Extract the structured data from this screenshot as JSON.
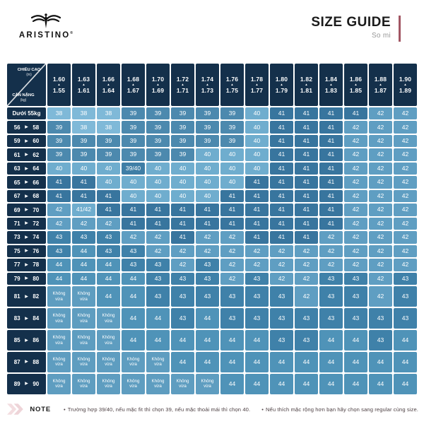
{
  "brand": {
    "name": "ARISTINO",
    "registered_mark": "®"
  },
  "title_block": {
    "title": "SIZE GUIDE",
    "subtitle": "So mi",
    "accent_color": "#a25663"
  },
  "chart_data": {
    "type": "table",
    "title": "SIZE GUIDE",
    "subtitle": "So mi",
    "corner": {
      "top_label": "CHIỀU CAO",
      "top_unit": "(m)",
      "bottom_label": "CÂN NẶNG",
      "bottom_unit": "(kg)"
    },
    "column_arrow": "▲",
    "row_arrow": "▶",
    "no_fit_text": "Không vừa",
    "height_columns": [
      {
        "upper": "1.60",
        "lower": "1.55"
      },
      {
        "upper": "1.63",
        "lower": "1.61"
      },
      {
        "upper": "1.66",
        "lower": "1.64"
      },
      {
        "upper": "1.68",
        "lower": "1.67"
      },
      {
        "upper": "1.70",
        "lower": "1.69"
      },
      {
        "upper": "1.72",
        "lower": "1.71"
      },
      {
        "upper": "1.74",
        "lower": "1.73"
      },
      {
        "upper": "1.76",
        "lower": "1.75"
      },
      {
        "upper": "1.78",
        "lower": "1.77"
      },
      {
        "upper": "1.80",
        "lower": "1.79"
      },
      {
        "upper": "1.82",
        "lower": "1.81"
      },
      {
        "upper": "1.84",
        "lower": "1.83"
      },
      {
        "upper": "1.86",
        "lower": "1.85"
      },
      {
        "upper": "1.88",
        "lower": "1.87"
      },
      {
        "upper": "1.90",
        "lower": "1.89"
      }
    ],
    "rows": [
      {
        "label": "Dưới 55kg",
        "sizes": [
          "38",
          "38",
          "38",
          "39",
          "39",
          "39",
          "39",
          "39",
          "40",
          "41",
          "41",
          "41",
          "41",
          "42",
          "42"
        ]
      },
      {
        "from": "56",
        "to": "58",
        "sizes": [
          "39",
          "38",
          "38",
          "39",
          "39",
          "39",
          "39",
          "39",
          "40",
          "41",
          "41",
          "41",
          "42",
          "42",
          "42"
        ]
      },
      {
        "from": "59",
        "to": "60",
        "sizes": [
          "39",
          "39",
          "39",
          "39",
          "39",
          "39",
          "39",
          "39",
          "40",
          "41",
          "41",
          "41",
          "42",
          "42",
          "42"
        ]
      },
      {
        "from": "61",
        "to": "62",
        "sizes": [
          "39",
          "39",
          "39",
          "39",
          "39",
          "39",
          "40",
          "40",
          "40",
          "41",
          "41",
          "41",
          "42",
          "42",
          "42"
        ]
      },
      {
        "from": "63",
        "to": "64",
        "sizes": [
          "40",
          "40",
          "40",
          "39/40",
          "40",
          "40",
          "40",
          "40",
          "40",
          "41",
          "41",
          "41",
          "42",
          "42",
          "42"
        ]
      },
      {
        "from": "65",
        "to": "66",
        "sizes": [
          "41",
          "41",
          "40",
          "40",
          "40",
          "40",
          "40",
          "40",
          "41",
          "41",
          "41",
          "41",
          "42",
          "42",
          "42"
        ]
      },
      {
        "from": "67",
        "to": "68",
        "sizes": [
          "41",
          "41",
          "41",
          "40",
          "40",
          "40",
          "40",
          "41",
          "41",
          "41",
          "41",
          "41",
          "42",
          "42",
          "42"
        ]
      },
      {
        "from": "69",
        "to": "70",
        "sizes": [
          "42",
          "41/42",
          "41",
          "41",
          "41",
          "41",
          "41",
          "41",
          "41",
          "41",
          "41",
          "41",
          "42",
          "42",
          "42"
        ]
      },
      {
        "from": "71",
        "to": "72",
        "sizes": [
          "42",
          "42",
          "42",
          "41",
          "41",
          "41",
          "41",
          "41",
          "41",
          "41",
          "41",
          "41",
          "42",
          "42",
          "42"
        ]
      },
      {
        "from": "73",
        "to": "74",
        "sizes": [
          "43",
          "43",
          "43",
          "42",
          "42",
          "41",
          "42",
          "42",
          "41",
          "41",
          "41",
          "42",
          "42",
          "42",
          "42"
        ]
      },
      {
        "from": "75",
        "to": "76",
        "sizes": [
          "43",
          "44",
          "43",
          "43",
          "42",
          "42",
          "42",
          "42",
          "42",
          "42",
          "42",
          "42",
          "42",
          "42",
          "42"
        ]
      },
      {
        "from": "77",
        "to": "78",
        "sizes": [
          "44",
          "44",
          "44",
          "43",
          "43",
          "42",
          "43",
          "42",
          "42",
          "42",
          "42",
          "42",
          "42",
          "42",
          "42"
        ]
      },
      {
        "from": "79",
        "to": "80",
        "sizes": [
          "44",
          "44",
          "44",
          "44",
          "43",
          "43",
          "43",
          "42",
          "43",
          "42",
          "42",
          "43",
          "43",
          "42",
          "43"
        ]
      },
      {
        "from": "81",
        "to": "82",
        "sizes": [
          "Không vừa",
          "Không vừa",
          "44",
          "44",
          "43",
          "43",
          "43",
          "43",
          "43",
          "43",
          "42",
          "43",
          "43",
          "42",
          "43"
        ]
      },
      {
        "from": "83",
        "to": "84",
        "sizes": [
          "Không vừa",
          "Không vừa",
          "Không vừa",
          "44",
          "44",
          "43",
          "44",
          "43",
          "43",
          "43",
          "43",
          "43",
          "43",
          "43",
          "43"
        ]
      },
      {
        "from": "85",
        "to": "86",
        "sizes": [
          "Không vừa",
          "Không vừa",
          "Không vừa",
          "44",
          "44",
          "44",
          "44",
          "44",
          "44",
          "43",
          "43",
          "44",
          "44",
          "43",
          "44"
        ]
      },
      {
        "from": "87",
        "to": "88",
        "sizes": [
          "Không vừa",
          "Không vừa",
          "Không vừa",
          "Không vừa",
          "Không vừa",
          "44",
          "44",
          "44",
          "44",
          "44",
          "44",
          "44",
          "44",
          "44",
          "44"
        ]
      },
      {
        "from": "89",
        "to": "90",
        "sizes": [
          "Không vừa",
          "Không vừa",
          "Không vừa",
          "Không vừa",
          "Không vừa",
          "Không vừa",
          "Không vừa",
          "44",
          "44",
          "44",
          "44",
          "44",
          "44",
          "44",
          "44"
        ]
      }
    ]
  },
  "cell_colors": {
    "38": "#7fb9d8",
    "39": "#4c89ae",
    "39/40": "#3f7ea6",
    "40": "#6fadce",
    "41": "#38759e",
    "41/42": "#6fadce",
    "42": "#5f9ec2",
    "43": "#3f81a9",
    "44": "#4f93b8",
    "Không vừa": "#5e9dc0",
    "default": "#5e9dc0"
  },
  "theme": {
    "header_bg": "#14304b",
    "grid_color": "#ffffff",
    "cell_text": "#ffffff"
  },
  "note": {
    "label": "NOTE",
    "bullet": "•",
    "chevron_color": "#f3dde0",
    "items": [
      "Trường hợp 39/40, nếu mặc fit thì chọn 39, nếu mặc thoải mái thì chọn 40.",
      "Nếu thích mặc rộng hơn bạn hãy chọn sang regular cùng size."
    ]
  }
}
